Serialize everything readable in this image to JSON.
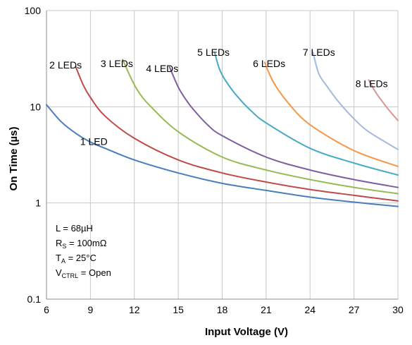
{
  "chart_data": {
    "type": "line",
    "title": "",
    "xlabel": "Input Voltage (V)",
    "ylabel": "On Time  (µs)",
    "xlim": [
      6,
      30
    ],
    "ylim": [
      0.1,
      100
    ],
    "yscale": "log",
    "grid": true,
    "x_ticks": [
      "6",
      "9",
      "12",
      "15",
      "18",
      "21",
      "24",
      "27",
      "30"
    ],
    "y_ticks": [
      "0.1",
      "1",
      "10",
      "100"
    ],
    "series": [
      {
        "name": "1 LED",
        "color": "#4a7ebb",
        "x": [
          6,
          7,
          8,
          9,
          10,
          12,
          15,
          18,
          21,
          24,
          27,
          30
        ],
        "y": [
          10.5,
          7.0,
          5.3,
          4.3,
          3.7,
          2.8,
          2.05,
          1.6,
          1.35,
          1.15,
          1.02,
          0.92
        ]
      },
      {
        "name": "2 LEDs",
        "color": "#be4b48",
        "x": [
          8,
          8.5,
          9,
          10,
          12,
          15,
          18,
          21,
          24,
          27,
          30
        ],
        "y": [
          26,
          17,
          12.5,
          8.0,
          4.7,
          2.8,
          2.05,
          1.65,
          1.38,
          1.2,
          1.05
        ]
      },
      {
        "name": "3 LEDs",
        "color": "#98b954",
        "x": [
          11.2,
          11.7,
          12.2,
          13,
          15,
          18,
          21,
          24,
          27,
          30
        ],
        "y": [
          31,
          21,
          15,
          10.5,
          5.5,
          3.0,
          2.2,
          1.75,
          1.45,
          1.25
        ]
      },
      {
        "name": "4 LEDs",
        "color": "#7d5fa0",
        "x": [
          14.4,
          15,
          15.5,
          16,
          17,
          18,
          21,
          24,
          27,
          30
        ],
        "y": [
          26,
          16,
          12,
          9.5,
          6.5,
          5.0,
          3.0,
          2.2,
          1.75,
          1.45
        ]
      },
      {
        "name": "5 LEDs",
        "color": "#46aac5",
        "x": [
          17.5,
          17.8,
          18.2,
          19,
          20,
          21,
          24,
          27,
          30
        ],
        "y": [
          36,
          25,
          19,
          13,
          9,
          6.8,
          3.7,
          2.6,
          1.95
        ]
      },
      {
        "name": "6 LEDs",
        "color": "#f79646",
        "x": [
          20.9,
          21.5,
          22.5,
          24,
          27,
          30
        ],
        "y": [
          29,
          18,
          11,
          6.5,
          3.5,
          2.4
        ]
      },
      {
        "name": "7 LEDs",
        "color": "#a2b9e0",
        "x": [
          24.2,
          24.6,
          25.2,
          26,
          27,
          28,
          30
        ],
        "y": [
          37,
          22,
          16,
          11,
          7.5,
          5.5,
          3.6
        ]
      },
      {
        "name": "8 LEDs",
        "color": "#d99694",
        "x": [
          28,
          28.5,
          29,
          29.5,
          30
        ],
        "y": [
          19,
          14,
          11,
          8.8,
          7.2
        ]
      }
    ],
    "conditions": {
      "l": "L = 68µH",
      "rs_main": "R",
      "rs_sub": "S",
      "rs_val": " = 100mΩ",
      "ta_main": "T",
      "ta_sub": "A",
      "ta_val": " = 25°C",
      "vctrl_main": "V",
      "vctrl_sub": "CTRL",
      "vctrl_val": " = Open"
    }
  }
}
